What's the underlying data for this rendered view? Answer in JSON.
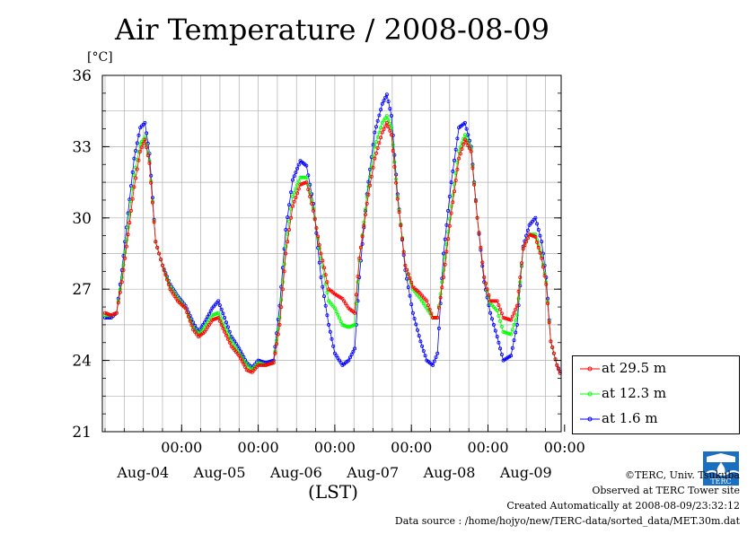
{
  "chart_data": {
    "type": "line",
    "title": "Air Temperature / 2008-08-09",
    "ylabel": "[°C]",
    "xlabel": "(LST)",
    "ylim": [
      21,
      36
    ],
    "yticks": [
      21,
      24,
      27,
      30,
      33,
      36
    ],
    "xlim": [
      0,
      6
    ],
    "xticks": [
      {
        "pos": 1,
        "time": "00:00",
        "date": "Aug-04"
      },
      {
        "pos": 2,
        "time": "00:00",
        "date": "Aug-05"
      },
      {
        "pos": 3,
        "time": "00:00",
        "date": "Aug-06"
      },
      {
        "pos": 4,
        "time": "00:00",
        "date": "Aug-07"
      },
      {
        "pos": 5,
        "time": "00:00",
        "date": "Aug-08"
      },
      {
        "pos": 6,
        "time": "00:00",
        "date": "Aug-09"
      }
    ],
    "x_unit_note": "days since 2008-08-03 00:00 LST",
    "grid": true,
    "legend": "bottom-right",
    "series": [
      {
        "name": "at 29.5 m",
        "color": "#ff0000",
        "points": [
          [
            0,
            26.0
          ],
          [
            0.08,
            25.9
          ],
          [
            0.15,
            26.0
          ],
          [
            0.22,
            27.3
          ],
          [
            0.3,
            29.3
          ],
          [
            0.38,
            31.3
          ],
          [
            0.46,
            32.8
          ],
          [
            0.52,
            33.3
          ],
          [
            0.58,
            32.3
          ],
          [
            0.66,
            29.0
          ],
          [
            0.75,
            28.0
          ],
          [
            0.85,
            27.0
          ],
          [
            0.95,
            26.5
          ],
          [
            1.05,
            26.2
          ],
          [
            1.15,
            25.3
          ],
          [
            1.22,
            25.0
          ],
          [
            1.3,
            25.2
          ],
          [
            1.4,
            25.7
          ],
          [
            1.48,
            25.8
          ],
          [
            1.56,
            25.2
          ],
          [
            1.65,
            24.6
          ],
          [
            1.75,
            24.2
          ],
          [
            1.85,
            23.6
          ],
          [
            1.92,
            23.5
          ],
          [
            2.0,
            23.8
          ],
          [
            2.1,
            23.8
          ],
          [
            2.2,
            23.9
          ],
          [
            2.28,
            25.5
          ],
          [
            2.36,
            28.5
          ],
          [
            2.45,
            30.5
          ],
          [
            2.55,
            31.4
          ],
          [
            2.63,
            31.5
          ],
          [
            2.72,
            30.3
          ],
          [
            2.82,
            28.5
          ],
          [
            2.92,
            27.0
          ],
          [
            3.0,
            26.8
          ],
          [
            3.1,
            26.6
          ],
          [
            3.18,
            26.2
          ],
          [
            3.26,
            26.0
          ],
          [
            3.32,
            28.3
          ],
          [
            3.42,
            30.6
          ],
          [
            3.52,
            32.5
          ],
          [
            3.62,
            33.6
          ],
          [
            3.68,
            34.0
          ],
          [
            3.74,
            33.5
          ],
          [
            3.82,
            30.8
          ],
          [
            3.92,
            28.0
          ],
          [
            4.02,
            27.1
          ],
          [
            4.12,
            26.8
          ],
          [
            4.2,
            26.5
          ],
          [
            4.28,
            25.8
          ],
          [
            4.34,
            25.8
          ],
          [
            4.42,
            27.5
          ],
          [
            4.52,
            30.2
          ],
          [
            4.62,
            32.5
          ],
          [
            4.7,
            33.3
          ],
          [
            4.78,
            32.8
          ],
          [
            4.86,
            30.0
          ],
          [
            4.95,
            27.5
          ],
          [
            5.03,
            26.5
          ],
          [
            5.12,
            26.5
          ],
          [
            5.2,
            25.8
          ],
          [
            5.3,
            25.7
          ],
          [
            5.38,
            26.3
          ],
          [
            5.46,
            28.7
          ],
          [
            5.54,
            29.3
          ],
          [
            5.62,
            29.2
          ],
          [
            5.7,
            28.3
          ],
          [
            5.76,
            27.2
          ],
          [
            5.82,
            24.8
          ],
          [
            5.9,
            23.8
          ],
          [
            5.96,
            23.3
          ],
          [
            6.05,
            23.4
          ]
        ]
      },
      {
        "name": "at 12.3 m",
        "color": "#00ff00",
        "points": [
          [
            0,
            25.9
          ],
          [
            0.08,
            25.9
          ],
          [
            0.15,
            26.0
          ],
          [
            0.22,
            27.5
          ],
          [
            0.3,
            29.6
          ],
          [
            0.38,
            31.8
          ],
          [
            0.46,
            33.1
          ],
          [
            0.52,
            33.4
          ],
          [
            0.58,
            32.4
          ],
          [
            0.66,
            29.0
          ],
          [
            0.75,
            28.0
          ],
          [
            0.85,
            27.1
          ],
          [
            0.95,
            26.6
          ],
          [
            1.05,
            26.2
          ],
          [
            1.15,
            25.4
          ],
          [
            1.22,
            25.1
          ],
          [
            1.3,
            25.4
          ],
          [
            1.4,
            25.9
          ],
          [
            1.48,
            26.0
          ],
          [
            1.56,
            25.4
          ],
          [
            1.65,
            24.8
          ],
          [
            1.75,
            24.3
          ],
          [
            1.85,
            23.8
          ],
          [
            1.92,
            23.6
          ],
          [
            2.0,
            23.9
          ],
          [
            2.1,
            23.8
          ],
          [
            2.2,
            23.9
          ],
          [
            2.28,
            25.8
          ],
          [
            2.36,
            28.8
          ],
          [
            2.45,
            30.9
          ],
          [
            2.55,
            31.7
          ],
          [
            2.63,
            31.7
          ],
          [
            2.72,
            30.4
          ],
          [
            2.82,
            28.3
          ],
          [
            2.92,
            26.5
          ],
          [
            3.0,
            26.2
          ],
          [
            3.1,
            25.5
          ],
          [
            3.18,
            25.4
          ],
          [
            3.26,
            25.5
          ],
          [
            3.32,
            28.2
          ],
          [
            3.42,
            30.9
          ],
          [
            3.52,
            33.0
          ],
          [
            3.62,
            34.0
          ],
          [
            3.68,
            34.3
          ],
          [
            3.74,
            33.8
          ],
          [
            3.82,
            30.9
          ],
          [
            3.92,
            28.0
          ],
          [
            4.02,
            27.0
          ],
          [
            4.12,
            26.6
          ],
          [
            4.2,
            26.2
          ],
          [
            4.28,
            25.8
          ],
          [
            4.34,
            25.8
          ],
          [
            4.42,
            27.8
          ],
          [
            4.52,
            30.5
          ],
          [
            4.62,
            32.8
          ],
          [
            4.7,
            33.5
          ],
          [
            4.78,
            32.9
          ],
          [
            4.86,
            30.0
          ],
          [
            4.95,
            27.5
          ],
          [
            5.03,
            26.4
          ],
          [
            5.12,
            26.1
          ],
          [
            5.2,
            25.2
          ],
          [
            5.3,
            25.1
          ],
          [
            5.38,
            25.9
          ],
          [
            5.46,
            28.7
          ],
          [
            5.54,
            29.3
          ],
          [
            5.62,
            29.3
          ],
          [
            5.7,
            28.4
          ],
          [
            5.76,
            27.3
          ],
          [
            5.82,
            24.8
          ],
          [
            5.9,
            23.8
          ],
          [
            5.96,
            23.3
          ],
          [
            6.05,
            23.5
          ]
        ]
      },
      {
        "name": "at 1.6 m",
        "color": "#0000ff",
        "points": [
          [
            0,
            25.8
          ],
          [
            0.08,
            25.8
          ],
          [
            0.15,
            26.0
          ],
          [
            0.22,
            27.8
          ],
          [
            0.3,
            30.2
          ],
          [
            0.38,
            32.5
          ],
          [
            0.46,
            33.8
          ],
          [
            0.52,
            34.0
          ],
          [
            0.58,
            32.7
          ],
          [
            0.66,
            29.0
          ],
          [
            0.75,
            28.0
          ],
          [
            0.85,
            27.2
          ],
          [
            0.95,
            26.7
          ],
          [
            1.05,
            26.3
          ],
          [
            1.15,
            25.6
          ],
          [
            1.22,
            25.2
          ],
          [
            1.3,
            25.6
          ],
          [
            1.4,
            26.2
          ],
          [
            1.48,
            26.5
          ],
          [
            1.56,
            25.8
          ],
          [
            1.65,
            25.0
          ],
          [
            1.75,
            24.5
          ],
          [
            1.85,
            23.9
          ],
          [
            1.92,
            23.7
          ],
          [
            2.0,
            24.0
          ],
          [
            2.1,
            23.9
          ],
          [
            2.2,
            24.0
          ],
          [
            2.28,
            26.3
          ],
          [
            2.36,
            29.5
          ],
          [
            2.45,
            31.6
          ],
          [
            2.55,
            32.4
          ],
          [
            2.63,
            32.2
          ],
          [
            2.72,
            30.6
          ],
          [
            2.82,
            27.5
          ],
          [
            2.92,
            25.5
          ],
          [
            3.0,
            24.3
          ],
          [
            3.1,
            23.8
          ],
          [
            3.18,
            24.0
          ],
          [
            3.26,
            24.5
          ],
          [
            3.32,
            27.5
          ],
          [
            3.42,
            31.0
          ],
          [
            3.52,
            33.6
          ],
          [
            3.62,
            34.8
          ],
          [
            3.68,
            35.2
          ],
          [
            3.74,
            34.3
          ],
          [
            3.82,
            31.0
          ],
          [
            3.92,
            27.8
          ],
          [
            4.02,
            26.0
          ],
          [
            4.12,
            24.8
          ],
          [
            4.2,
            24.0
          ],
          [
            4.28,
            23.8
          ],
          [
            4.34,
            24.3
          ],
          [
            4.42,
            28.5
          ],
          [
            4.52,
            31.5
          ],
          [
            4.62,
            33.8
          ],
          [
            4.7,
            34.0
          ],
          [
            4.78,
            33.0
          ],
          [
            4.86,
            30.0
          ],
          [
            4.95,
            27.3
          ],
          [
            5.03,
            26.0
          ],
          [
            5.12,
            25.0
          ],
          [
            5.2,
            24.0
          ],
          [
            5.3,
            24.2
          ],
          [
            5.38,
            25.5
          ],
          [
            5.46,
            28.8
          ],
          [
            5.54,
            29.7
          ],
          [
            5.62,
            30.0
          ],
          [
            5.7,
            29.0
          ],
          [
            5.76,
            27.5
          ],
          [
            5.82,
            24.8
          ],
          [
            5.9,
            23.8
          ],
          [
            5.96,
            23.4
          ],
          [
            6.05,
            23.6
          ]
        ]
      }
    ]
  },
  "footer": {
    "credit": "©TERC, Univ. Tsukuba",
    "observed": "Observed at TERC Tower site",
    "created": "Created Automatically at 2008-08-09/23:32:12",
    "source": "Data source : /home/hojyo/new/TERC-data/sorted_data/MET.30m.dat"
  },
  "logo": {
    "text": "TERC",
    "color": "#1a6fc0"
  }
}
